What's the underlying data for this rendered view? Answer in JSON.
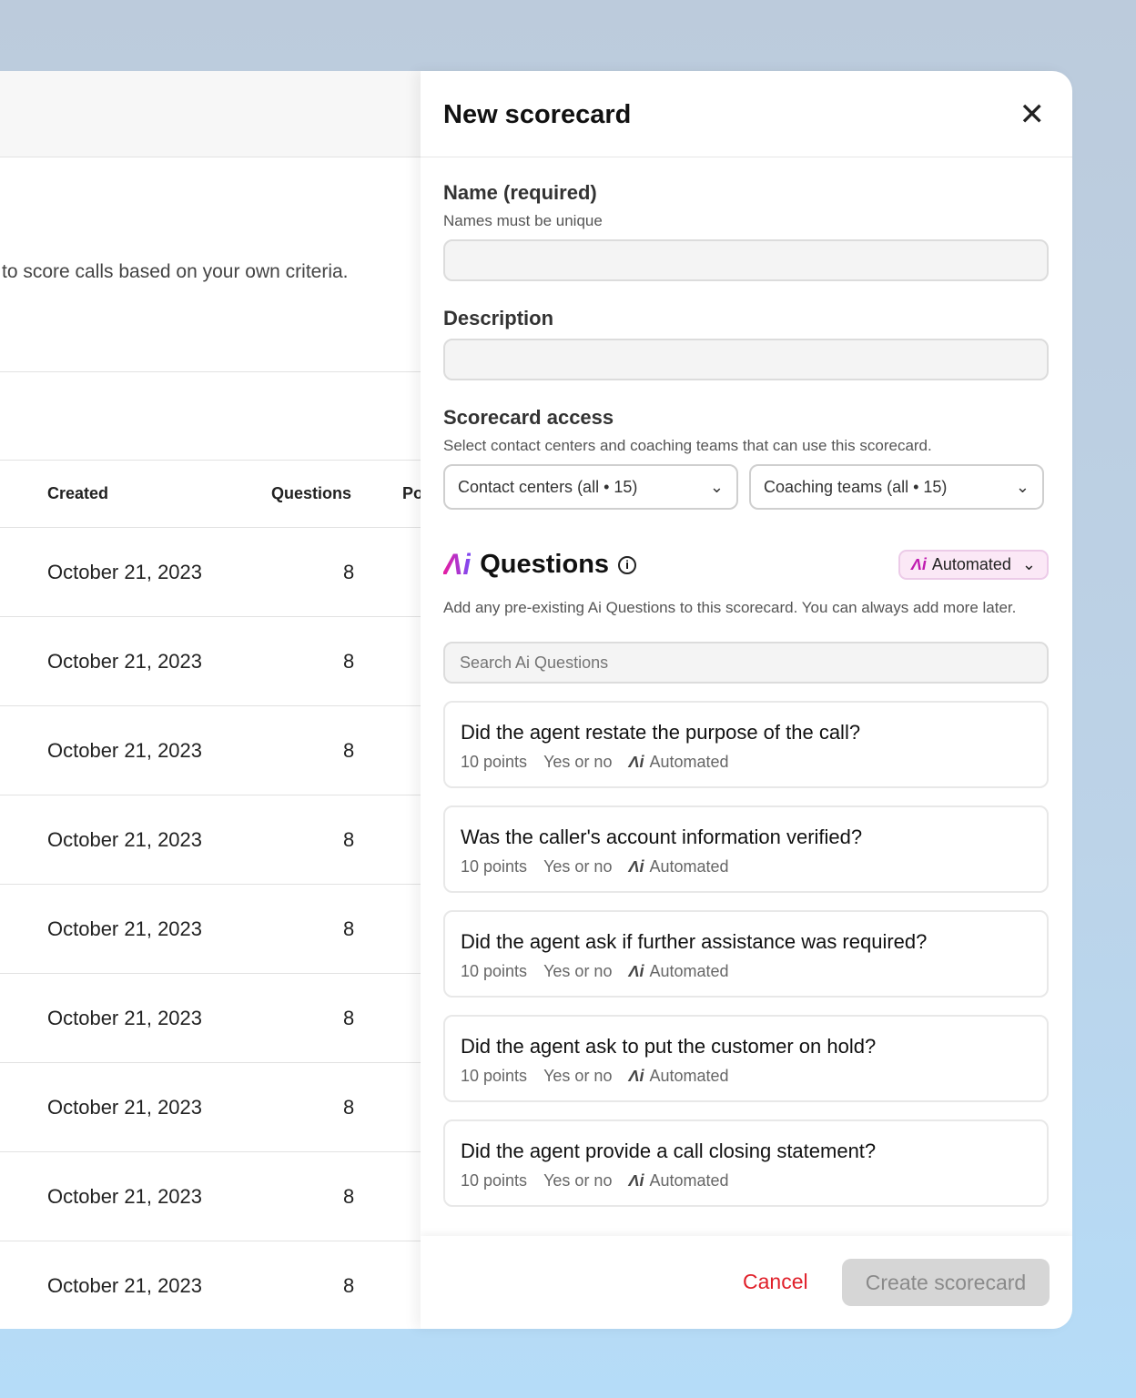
{
  "background_table": {
    "intro_text": "to score calls based on your own criteria.",
    "columns": [
      "Created",
      "Questions",
      "Po"
    ],
    "rows": [
      {
        "created": "October 21, 2023",
        "questions": "8"
      },
      {
        "created": "October 21, 2023",
        "questions": "8"
      },
      {
        "created": "October 21, 2023",
        "questions": "8"
      },
      {
        "created": "October 21, 2023",
        "questions": "8"
      },
      {
        "created": "October 21, 2023",
        "questions": "8"
      },
      {
        "created": "October 21, 2023",
        "questions": "8"
      },
      {
        "created": "October 21, 2023",
        "questions": "8"
      },
      {
        "created": "October 21, 2023",
        "questions": "8"
      },
      {
        "created": "October 21, 2023",
        "questions": "8"
      }
    ]
  },
  "modal": {
    "title": "New scorecard",
    "name_label": "Name (required)",
    "name_hint": "Names must be unique",
    "name_value": "",
    "description_label": "Description",
    "description_value": "",
    "access_label": "Scorecard access",
    "access_hint": "Select contact centers and coaching teams that can use this scorecard.",
    "contact_centers": "Contact centers (all • 15)",
    "coaching_teams": "Coaching teams (all • 15)",
    "questions_logo": "Ai",
    "questions_title": "Questions",
    "automated_filter": "Automated",
    "questions_hint": "Add any pre-existing Ai Questions to this scorecard. You can always add more later.",
    "search_placeholder": "Search Ai Questions",
    "questions": [
      {
        "text": "Did the agent restate the purpose of the call?",
        "points": "10 points",
        "type": "Yes or no",
        "mode": "Automated"
      },
      {
        "text": "Was the caller's account information verified?",
        "points": "10 points",
        "type": "Yes or no",
        "mode": "Automated"
      },
      {
        "text": "Did the agent ask if further assistance was required?",
        "points": "10 points",
        "type": "Yes or no",
        "mode": "Automated"
      },
      {
        "text": "Did the agent ask to put the customer on hold?",
        "points": "10 points",
        "type": "Yes or no",
        "mode": "Automated"
      },
      {
        "text": "Did the agent provide a call closing statement?",
        "points": "10 points",
        "type": "Yes or no",
        "mode": "Automated"
      }
    ],
    "cancel_label": "Cancel",
    "create_label": "Create scorecard"
  },
  "colors": {
    "accent_red": "#e0202a",
    "ai_gradient_start": "#e81ca0",
    "ai_gradient_end": "#7b4cf5"
  }
}
